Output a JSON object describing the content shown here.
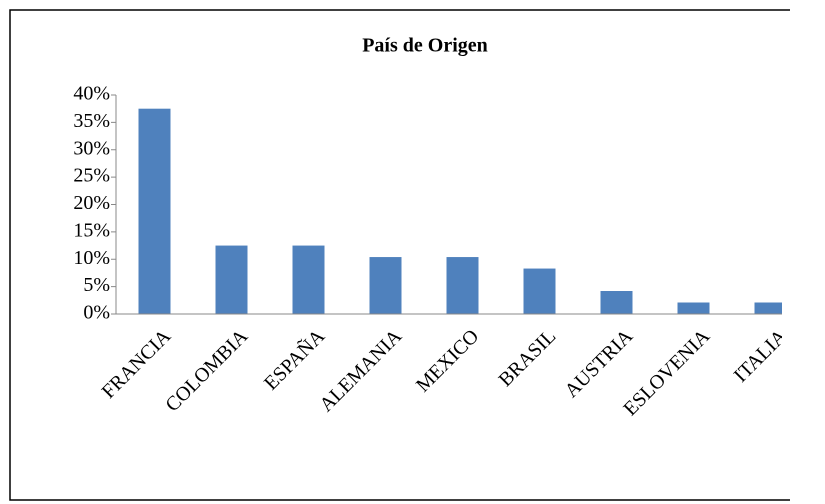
{
  "chart_data": {
    "type": "bar",
    "title": "País de Origen",
    "categories": [
      "FRANCIA",
      "COLOMBIA",
      "ESPAÑA",
      "ALEMANIA",
      "MEXICO",
      "BRASIL",
      "AUSTRIA",
      "ESLOVENIA",
      "ITALIA"
    ],
    "values": [
      37.5,
      12.5,
      12.5,
      10.4,
      10.4,
      8.3,
      4.2,
      2.1,
      2.1
    ],
    "color": "#4f81bd",
    "ylim": [
      0,
      40
    ],
    "yticks": [
      {
        "value": 0,
        "label": "0%"
      },
      {
        "value": 5,
        "label": "5%"
      },
      {
        "value": 10,
        "label": "10%"
      },
      {
        "value": 15,
        "label": "15%"
      },
      {
        "value": 20,
        "label": "20%"
      },
      {
        "value": 25,
        "label": "25%"
      },
      {
        "value": 30,
        "label": "30%"
      },
      {
        "value": 35,
        "label": "35%"
      },
      {
        "value": 40,
        "label": "40%"
      }
    ],
    "grid": false
  }
}
